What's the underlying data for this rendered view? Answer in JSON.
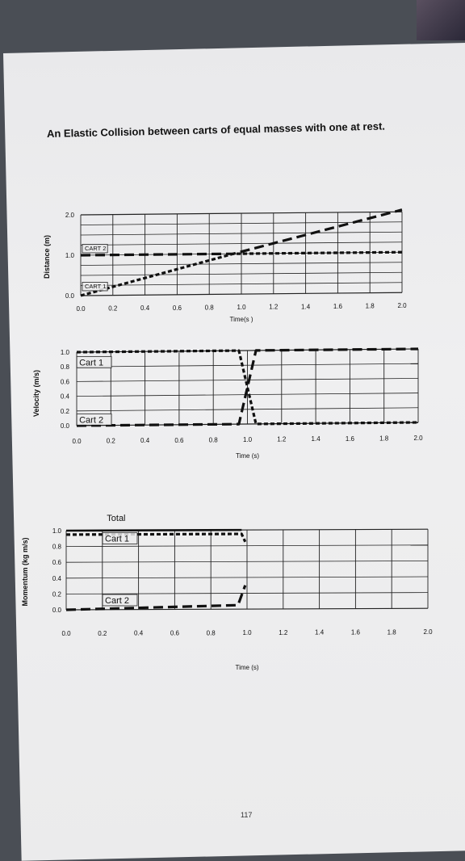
{
  "page": {
    "title": "An Elastic Collision between carts of equal masses with one at rest.",
    "page_number": "117"
  },
  "chart_data": [
    {
      "type": "line",
      "xlabel": "Time(s )",
      "ylabel": "Distance (m)",
      "xlim": [
        0,
        2.0
      ],
      "ylim": [
        0,
        2.0
      ],
      "x_ticks": [
        "0.0",
        "0.2",
        "0.4",
        "0.6",
        "0.8",
        "1.0",
        "1.2",
        "1.4",
        "1.6",
        "1.8",
        "2.0"
      ],
      "y_ticks": [
        "0.0",
        "1.0",
        "2.0"
      ],
      "grid": true,
      "annotations": [
        "CART 2",
        "CART 1"
      ],
      "series": [
        {
          "style": "dashed",
          "x": [
            0,
            0.95,
            2.0
          ],
          "y": [
            0,
            1.0,
            1.0
          ]
        },
        {
          "style": "long-dashed",
          "x": [
            0,
            0.95,
            2.0
          ],
          "y": [
            1.0,
            1.0,
            2.05
          ]
        }
      ]
    },
    {
      "type": "line",
      "xlabel": "Time (s)",
      "ylabel": "Velocity (m/s)",
      "xlim": [
        0,
        2.0
      ],
      "ylim": [
        0,
        1.0
      ],
      "x_ticks": [
        "0.0",
        "0.2",
        "0.4",
        "0.6",
        "0.8",
        "1.0",
        "1.2",
        "1.4",
        "1.6",
        "1.8",
        "2.0"
      ],
      "y_ticks": [
        "0.0",
        "0.2",
        "0.4",
        "0.6",
        "0.8",
        "1.0"
      ],
      "grid": true,
      "annotations": [
        "Cart 1",
        "Cart 2"
      ],
      "series": [
        {
          "style": "dashed",
          "x": [
            0,
            0.95,
            1.05,
            2.0
          ],
          "y": [
            1.0,
            1.0,
            0,
            0
          ]
        },
        {
          "style": "long-dashed",
          "x": [
            0,
            0.95,
            1.05,
            2.0
          ],
          "y": [
            0,
            0,
            1.0,
            1.0
          ]
        }
      ]
    },
    {
      "type": "line",
      "xlabel": "Time (s)",
      "ylabel": "Momentum (kg m/s)",
      "xlim": [
        0,
        2.0
      ],
      "ylim": [
        0,
        1.0
      ],
      "x_ticks": [
        "0.0",
        "0.2",
        "0.4",
        "0.6",
        "0.8",
        "1.0",
        "1.2",
        "1.4",
        "1.6",
        "1.8",
        "2.0"
      ],
      "y_ticks": [
        "0.0",
        "0.2",
        "0.4",
        "0.6",
        "0.8",
        "1.0"
      ],
      "grid": true,
      "annotations": [
        "Total",
        "Cart 1",
        "Cart 2"
      ],
      "series": [
        {
          "style": "solid",
          "x": [
            0,
            0.97
          ],
          "y": [
            1.0,
            1.0
          ]
        },
        {
          "style": "dashed",
          "x": [
            0,
            0.97,
            0.99
          ],
          "y": [
            0.95,
            0.95,
            0.85
          ]
        },
        {
          "style": "long-dashed",
          "x": [
            0,
            0.95,
            0.99
          ],
          "y": [
            0,
            0.05,
            0.3
          ]
        }
      ]
    }
  ]
}
